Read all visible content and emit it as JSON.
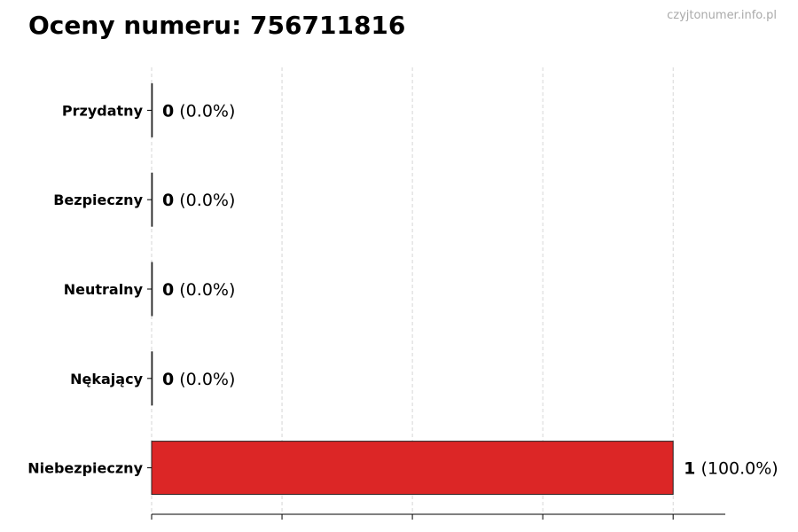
{
  "chart_data": {
    "type": "bar",
    "orientation": "horizontal",
    "title": "Oceny numeru: 756711816",
    "watermark": "czyjtonumer.info.pl",
    "categories": [
      "Przydatny",
      "Bezpieczny",
      "Neutralny",
      "Nękający",
      "Niebezpieczny"
    ],
    "values": [
      0,
      0,
      0,
      0,
      1
    ],
    "data_labels": [
      {
        "count": "0",
        "pct": "(0.0%)"
      },
      {
        "count": "0",
        "pct": "(0.0%)"
      },
      {
        "count": "0",
        "pct": "(0.0%)"
      },
      {
        "count": "0",
        "pct": "(0.0%)"
      },
      {
        "count": "1",
        "pct": "(100.0%)"
      }
    ],
    "colors": [
      "#22aa44",
      "#2f6fd6",
      "#999999",
      "#f08c1e",
      "#dc2626"
    ],
    "xlim": [
      0,
      1.1
    ],
    "xticks": [
      0,
      0.25,
      0.5,
      0.75,
      1
    ],
    "xtick_labels_shown": false,
    "grid": "x-dashed",
    "xlabel": "",
    "ylabel": ""
  }
}
